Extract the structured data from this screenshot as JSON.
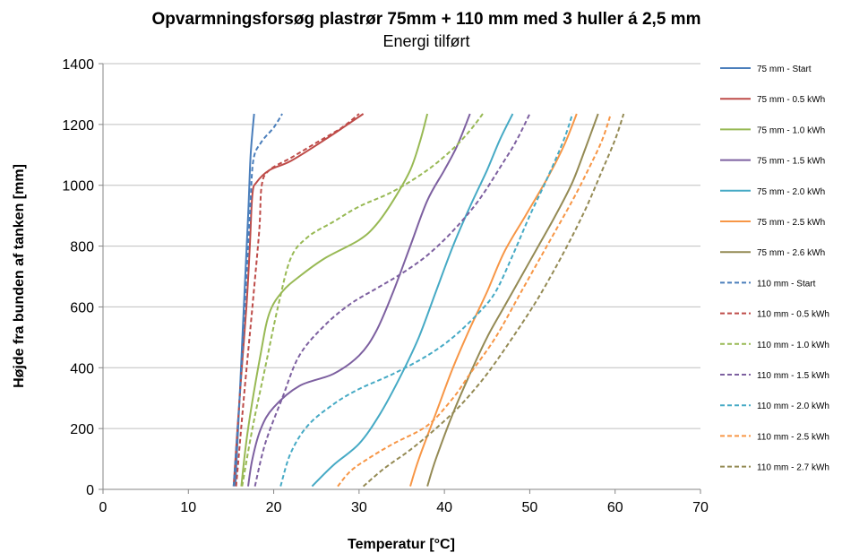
{
  "chart_data": {
    "type": "line",
    "title": "Opvarmningsforsøg plastrør  75mm + 110 mm med 3 huller á 2,5 mm",
    "subtitle": "Energi tilført",
    "xlabel": "Temperatur [°C]",
    "ylabel": "Højde fra bunden af tanken [mm]",
    "xlim": [
      0,
      70
    ],
    "ylim": [
      0,
      1400
    ],
    "xticks": [
      "0",
      "10",
      "20",
      "30",
      "40",
      "50",
      "60",
      "70"
    ],
    "yticks": [
      "0",
      "200",
      "400",
      "600",
      "800",
      "1000",
      "1200",
      "1400"
    ],
    "grid": "horizontal",
    "legend_position": "right",
    "series": [
      {
        "name": "75 mm -  Start",
        "color": "#4a7ebb",
        "dashed": false,
        "points": [
          [
            15.5,
            10
          ],
          [
            16,
            300
          ],
          [
            16.5,
            600
          ],
          [
            17,
            900
          ],
          [
            17.3,
            1100
          ],
          [
            17.7,
            1235
          ]
        ]
      },
      {
        "name": "75 mm -  0.5 kWh",
        "color": "#be4b48",
        "dashed": false,
        "points": [
          [
            15.3,
            10
          ],
          [
            16,
            300
          ],
          [
            16.8,
            600
          ],
          [
            17.2,
            800
          ],
          [
            17.5,
            970
          ],
          [
            18,
            1010
          ],
          [
            19.5,
            1050
          ],
          [
            22,
            1080
          ],
          [
            26,
            1150
          ],
          [
            30.5,
            1235
          ]
        ]
      },
      {
        "name": "75 mm -  1.0 kWh",
        "color": "#98b954",
        "dashed": false,
        "points": [
          [
            16.2,
            10
          ],
          [
            17,
            200
          ],
          [
            18.5,
            450
          ],
          [
            19.5,
            580
          ],
          [
            21,
            650
          ],
          [
            23,
            700
          ],
          [
            26,
            760
          ],
          [
            30,
            820
          ],
          [
            32,
            870
          ],
          [
            34,
            950
          ],
          [
            36,
            1050
          ],
          [
            37.2,
            1150
          ],
          [
            38,
            1235
          ]
        ]
      },
      {
        "name": "75 mm -  1.5 kWh",
        "color": "#7d60a0",
        "dashed": false,
        "points": [
          [
            17,
            10
          ],
          [
            17.5,
            100
          ],
          [
            18.5,
            200
          ],
          [
            20,
            270
          ],
          [
            23,
            340
          ],
          [
            27,
            380
          ],
          [
            30,
            440
          ],
          [
            32,
            520
          ],
          [
            34,
            650
          ],
          [
            36,
            800
          ],
          [
            38,
            950
          ],
          [
            40,
            1050
          ],
          [
            41.5,
            1130
          ],
          [
            43,
            1235
          ]
        ]
      },
      {
        "name": "75 mm -  2.0 kWh",
        "color": "#46aac5",
        "dashed": false,
        "points": [
          [
            24.5,
            10
          ],
          [
            27,
            80
          ],
          [
            30,
            150
          ],
          [
            32.5,
            250
          ],
          [
            35,
            380
          ],
          [
            37,
            500
          ],
          [
            39,
            650
          ],
          [
            41,
            800
          ],
          [
            43,
            930
          ],
          [
            45,
            1050
          ],
          [
            46.5,
            1150
          ],
          [
            48,
            1235
          ]
        ]
      },
      {
        "name": "75 mm -  2.5 kWh",
        "color": "#f79646",
        "dashed": false,
        "points": [
          [
            36,
            10
          ],
          [
            37,
            100
          ],
          [
            39,
            250
          ],
          [
            41,
            400
          ],
          [
            43,
            530
          ],
          [
            45,
            650
          ],
          [
            47,
            780
          ],
          [
            49.5,
            900
          ],
          [
            52,
            1020
          ],
          [
            54,
            1130
          ],
          [
            55.5,
            1235
          ]
        ]
      },
      {
        "name": "75 mm -  2.6 kWh",
        "color": "#948a54",
        "dashed": false,
        "points": [
          [
            38,
            10
          ],
          [
            39,
            100
          ],
          [
            41,
            250
          ],
          [
            43,
            380
          ],
          [
            45,
            500
          ],
          [
            47,
            600
          ],
          [
            49,
            700
          ],
          [
            51,
            800
          ],
          [
            53,
            900
          ],
          [
            55,
            1010
          ],
          [
            56.5,
            1120
          ],
          [
            58,
            1235
          ]
        ]
      },
      {
        "name": "110 mm -  Start",
        "color": "#4a7ebb",
        "dashed": true,
        "points": [
          [
            15.3,
            10
          ],
          [
            16,
            300
          ],
          [
            16.6,
            600
          ],
          [
            17.2,
            900
          ],
          [
            17.6,
            1080
          ],
          [
            18.5,
            1140
          ],
          [
            20,
            1190
          ],
          [
            21,
            1235
          ]
        ]
      },
      {
        "name": "110 mm -  0.5 kWh",
        "color": "#be4b48",
        "dashed": true,
        "points": [
          [
            15.6,
            10
          ],
          [
            16.5,
            300
          ],
          [
            17.5,
            600
          ],
          [
            18.3,
            850
          ],
          [
            18.6,
            1000
          ],
          [
            19.5,
            1050
          ],
          [
            22,
            1090
          ],
          [
            25,
            1140
          ],
          [
            28,
            1190
          ],
          [
            30,
            1235
          ]
        ]
      },
      {
        "name": "110 mm -  1.0 kWh",
        "color": "#98b954",
        "dashed": true,
        "points": [
          [
            16.3,
            10
          ],
          [
            17.5,
            200
          ],
          [
            19,
            400
          ],
          [
            20.5,
            600
          ],
          [
            22,
            760
          ],
          [
            24,
            830
          ],
          [
            27,
            880
          ],
          [
            30,
            930
          ],
          [
            34,
            980
          ],
          [
            38,
            1050
          ],
          [
            41,
            1120
          ],
          [
            43,
            1180
          ],
          [
            44.5,
            1235
          ]
        ]
      },
      {
        "name": "110 mm -  1.5 kWh",
        "color": "#7d60a0",
        "dashed": true,
        "points": [
          [
            17.8,
            10
          ],
          [
            19,
            150
          ],
          [
            21,
            300
          ],
          [
            23,
            440
          ],
          [
            26,
            540
          ],
          [
            29,
            610
          ],
          [
            32,
            660
          ],
          [
            35,
            710
          ],
          [
            38,
            770
          ],
          [
            41,
            850
          ],
          [
            44,
            950
          ],
          [
            47,
            1080
          ],
          [
            48.5,
            1150
          ],
          [
            50,
            1235
          ]
        ]
      },
      {
        "name": "110 mm -  2.0 kWh",
        "color": "#46aac5",
        "dashed": true,
        "points": [
          [
            20.8,
            10
          ],
          [
            22,
            120
          ],
          [
            24,
            210
          ],
          [
            27,
            280
          ],
          [
            30,
            330
          ],
          [
            34,
            380
          ],
          [
            38,
            440
          ],
          [
            41,
            500
          ],
          [
            44,
            580
          ],
          [
            46,
            650
          ],
          [
            48,
            770
          ],
          [
            50,
            900
          ],
          [
            52,
            1020
          ],
          [
            54,
            1150
          ],
          [
            55,
            1235
          ]
        ]
      },
      {
        "name": "110 mm -  2.5 kWh",
        "color": "#f79646",
        "dashed": true,
        "points": [
          [
            27.5,
            10
          ],
          [
            29,
            60
          ],
          [
            31,
            100
          ],
          [
            34,
            150
          ],
          [
            38,
            210
          ],
          [
            41,
            300
          ],
          [
            43,
            380
          ],
          [
            46,
            500
          ],
          [
            49,
            650
          ],
          [
            52,
            800
          ],
          [
            55,
            950
          ],
          [
            57,
            1060
          ],
          [
            58.5,
            1150
          ],
          [
            59.5,
            1235
          ]
        ]
      },
      {
        "name": "110 mm -  2.7 kWh",
        "color": "#948a54",
        "dashed": true,
        "points": [
          [
            30.5,
            10
          ],
          [
            33,
            70
          ],
          [
            36,
            130
          ],
          [
            39,
            200
          ],
          [
            42,
            280
          ],
          [
            45,
            380
          ],
          [
            48,
            500
          ],
          [
            51,
            630
          ],
          [
            54,
            780
          ],
          [
            56.5,
            920
          ],
          [
            58.5,
            1050
          ],
          [
            60,
            1150
          ],
          [
            61,
            1235
          ]
        ]
      }
    ]
  }
}
